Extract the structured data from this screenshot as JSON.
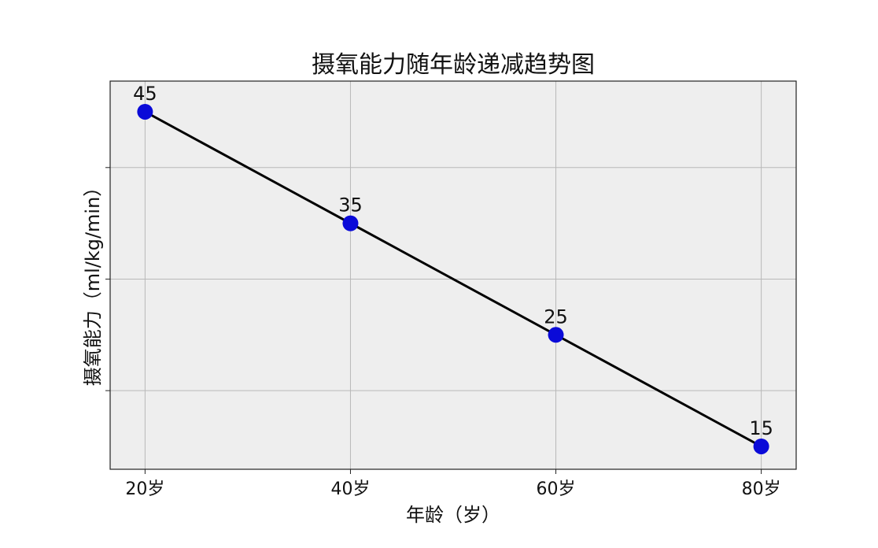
{
  "chart_data": {
    "type": "line",
    "title": "摄氧能力随年龄递减趋势图",
    "xlabel": "年龄（岁）",
    "ylabel": "摄氧能力（ml/kg/min）",
    "x": [
      20,
      40,
      60,
      80
    ],
    "x_tick_labels": [
      "20岁",
      "40岁",
      "60岁",
      "80岁"
    ],
    "y_ticks": [
      20,
      30,
      40
    ],
    "y_tick_labels_shown": false,
    "series": [
      {
        "values": [
          45,
          35,
          25,
          15
        ],
        "data_labels": [
          "45",
          "35",
          "25",
          "15"
        ]
      }
    ],
    "xlim": [
      16.6,
      83.4
    ],
    "ylim": [
      12.95,
      47.75
    ],
    "grid": true,
    "colors": {
      "line": "#000000",
      "marker": "#0a0ad8",
      "plot_background": "#eeeeee",
      "grid": "#b8b8b8"
    }
  }
}
